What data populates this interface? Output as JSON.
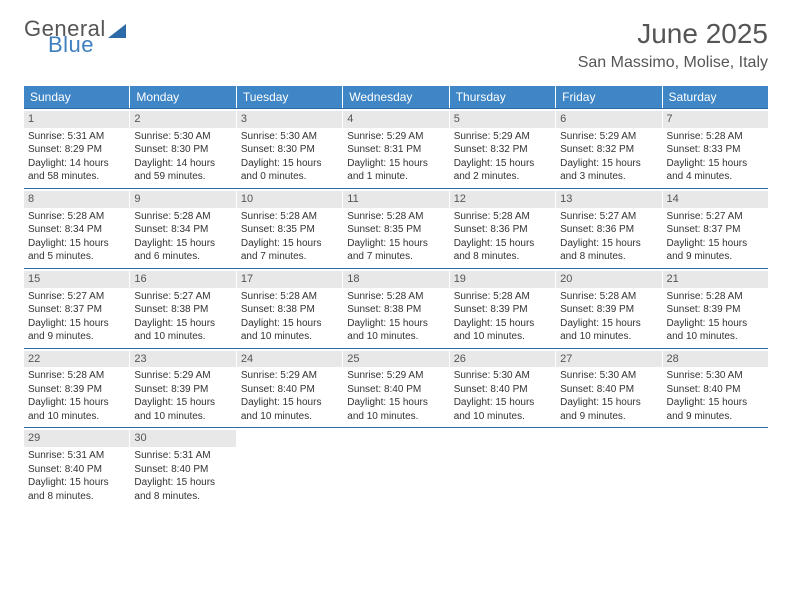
{
  "logo": {
    "word1": "General",
    "word2": "Blue"
  },
  "title": "June 2025",
  "location": "San Massimo, Molise, Italy",
  "day_headers": [
    "Sunday",
    "Monday",
    "Tuesday",
    "Wednesday",
    "Thursday",
    "Friday",
    "Saturday"
  ],
  "colors": {
    "header_bg": "#3f86c7",
    "header_text": "#ffffff",
    "daynum_bg": "#e8e8e8",
    "border": "#2d6aa8",
    "title_text": "#555555",
    "body_text": "#333333",
    "logo_blue": "#3f7fbf"
  },
  "fonts": {
    "title_size_pt": 21,
    "location_size_pt": 12,
    "dayheader_size_pt": 9,
    "cell_size_pt": 7.5
  },
  "weeks": [
    [
      {
        "n": "1",
        "sr": "Sunrise: 5:31 AM",
        "ss": "Sunset: 8:29 PM",
        "d1": "Daylight: 14 hours",
        "d2": "and 58 minutes."
      },
      {
        "n": "2",
        "sr": "Sunrise: 5:30 AM",
        "ss": "Sunset: 8:30 PM",
        "d1": "Daylight: 14 hours",
        "d2": "and 59 minutes."
      },
      {
        "n": "3",
        "sr": "Sunrise: 5:30 AM",
        "ss": "Sunset: 8:30 PM",
        "d1": "Daylight: 15 hours",
        "d2": "and 0 minutes."
      },
      {
        "n": "4",
        "sr": "Sunrise: 5:29 AM",
        "ss": "Sunset: 8:31 PM",
        "d1": "Daylight: 15 hours",
        "d2": "and 1 minute."
      },
      {
        "n": "5",
        "sr": "Sunrise: 5:29 AM",
        "ss": "Sunset: 8:32 PM",
        "d1": "Daylight: 15 hours",
        "d2": "and 2 minutes."
      },
      {
        "n": "6",
        "sr": "Sunrise: 5:29 AM",
        "ss": "Sunset: 8:32 PM",
        "d1": "Daylight: 15 hours",
        "d2": "and 3 minutes."
      },
      {
        "n": "7",
        "sr": "Sunrise: 5:28 AM",
        "ss": "Sunset: 8:33 PM",
        "d1": "Daylight: 15 hours",
        "d2": "and 4 minutes."
      }
    ],
    [
      {
        "n": "8",
        "sr": "Sunrise: 5:28 AM",
        "ss": "Sunset: 8:34 PM",
        "d1": "Daylight: 15 hours",
        "d2": "and 5 minutes."
      },
      {
        "n": "9",
        "sr": "Sunrise: 5:28 AM",
        "ss": "Sunset: 8:34 PM",
        "d1": "Daylight: 15 hours",
        "d2": "and 6 minutes."
      },
      {
        "n": "10",
        "sr": "Sunrise: 5:28 AM",
        "ss": "Sunset: 8:35 PM",
        "d1": "Daylight: 15 hours",
        "d2": "and 7 minutes."
      },
      {
        "n": "11",
        "sr": "Sunrise: 5:28 AM",
        "ss": "Sunset: 8:35 PM",
        "d1": "Daylight: 15 hours",
        "d2": "and 7 minutes."
      },
      {
        "n": "12",
        "sr": "Sunrise: 5:28 AM",
        "ss": "Sunset: 8:36 PM",
        "d1": "Daylight: 15 hours",
        "d2": "and 8 minutes."
      },
      {
        "n": "13",
        "sr": "Sunrise: 5:27 AM",
        "ss": "Sunset: 8:36 PM",
        "d1": "Daylight: 15 hours",
        "d2": "and 8 minutes."
      },
      {
        "n": "14",
        "sr": "Sunrise: 5:27 AM",
        "ss": "Sunset: 8:37 PM",
        "d1": "Daylight: 15 hours",
        "d2": "and 9 minutes."
      }
    ],
    [
      {
        "n": "15",
        "sr": "Sunrise: 5:27 AM",
        "ss": "Sunset: 8:37 PM",
        "d1": "Daylight: 15 hours",
        "d2": "and 9 minutes."
      },
      {
        "n": "16",
        "sr": "Sunrise: 5:27 AM",
        "ss": "Sunset: 8:38 PM",
        "d1": "Daylight: 15 hours",
        "d2": "and 10 minutes."
      },
      {
        "n": "17",
        "sr": "Sunrise: 5:28 AM",
        "ss": "Sunset: 8:38 PM",
        "d1": "Daylight: 15 hours",
        "d2": "and 10 minutes."
      },
      {
        "n": "18",
        "sr": "Sunrise: 5:28 AM",
        "ss": "Sunset: 8:38 PM",
        "d1": "Daylight: 15 hours",
        "d2": "and 10 minutes."
      },
      {
        "n": "19",
        "sr": "Sunrise: 5:28 AM",
        "ss": "Sunset: 8:39 PM",
        "d1": "Daylight: 15 hours",
        "d2": "and 10 minutes."
      },
      {
        "n": "20",
        "sr": "Sunrise: 5:28 AM",
        "ss": "Sunset: 8:39 PM",
        "d1": "Daylight: 15 hours",
        "d2": "and 10 minutes."
      },
      {
        "n": "21",
        "sr": "Sunrise: 5:28 AM",
        "ss": "Sunset: 8:39 PM",
        "d1": "Daylight: 15 hours",
        "d2": "and 10 minutes."
      }
    ],
    [
      {
        "n": "22",
        "sr": "Sunrise: 5:28 AM",
        "ss": "Sunset: 8:39 PM",
        "d1": "Daylight: 15 hours",
        "d2": "and 10 minutes."
      },
      {
        "n": "23",
        "sr": "Sunrise: 5:29 AM",
        "ss": "Sunset: 8:39 PM",
        "d1": "Daylight: 15 hours",
        "d2": "and 10 minutes."
      },
      {
        "n": "24",
        "sr": "Sunrise: 5:29 AM",
        "ss": "Sunset: 8:40 PM",
        "d1": "Daylight: 15 hours",
        "d2": "and 10 minutes."
      },
      {
        "n": "25",
        "sr": "Sunrise: 5:29 AM",
        "ss": "Sunset: 8:40 PM",
        "d1": "Daylight: 15 hours",
        "d2": "and 10 minutes."
      },
      {
        "n": "26",
        "sr": "Sunrise: 5:30 AM",
        "ss": "Sunset: 8:40 PM",
        "d1": "Daylight: 15 hours",
        "d2": "and 10 minutes."
      },
      {
        "n": "27",
        "sr": "Sunrise: 5:30 AM",
        "ss": "Sunset: 8:40 PM",
        "d1": "Daylight: 15 hours",
        "d2": "and 9 minutes."
      },
      {
        "n": "28",
        "sr": "Sunrise: 5:30 AM",
        "ss": "Sunset: 8:40 PM",
        "d1": "Daylight: 15 hours",
        "d2": "and 9 minutes."
      }
    ],
    [
      {
        "n": "29",
        "sr": "Sunrise: 5:31 AM",
        "ss": "Sunset: 8:40 PM",
        "d1": "Daylight: 15 hours",
        "d2": "and 8 minutes."
      },
      {
        "n": "30",
        "sr": "Sunrise: 5:31 AM",
        "ss": "Sunset: 8:40 PM",
        "d1": "Daylight: 15 hours",
        "d2": "and 8 minutes."
      },
      null,
      null,
      null,
      null,
      null
    ]
  ]
}
